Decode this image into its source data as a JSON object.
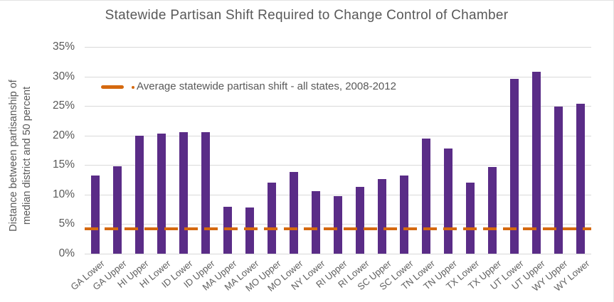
{
  "colors": {
    "bar": "#5a2c87",
    "average_line": "#d5690f",
    "text": "#595959",
    "axis_label_text": "#5f5f5f",
    "gridline": "#d9d9d9",
    "background": "#ffffff"
  },
  "chart_data": {
    "type": "bar",
    "title": "Statewide Partisan Shift Required to Change Control of Chamber",
    "ylabel": "Distance between partisanship of median district and 50 percent",
    "ylabel_lines": [
      "Distance between partisanship of",
      "median district and 50 percent"
    ],
    "xlabel": "",
    "categories": [
      "GA Lower",
      "GA Upper",
      "HI Upper",
      "HI Lower",
      "ID Lower",
      "ID Upper",
      "MA Upper",
      "MA Lower",
      "MO Upper",
      "MO Lower",
      "NY Lower",
      "RI Upper",
      "RI Lower",
      "SC Upper",
      "SC Lower",
      "TN Lower",
      "TN Upper",
      "TX Lower",
      "TX Upper",
      "UT Lower",
      "UT Upper",
      "WY Upper",
      "WY Lower"
    ],
    "values": [
      13.2,
      14.8,
      20.0,
      20.3,
      20.6,
      20.6,
      7.9,
      7.8,
      12.0,
      13.8,
      10.6,
      9.8,
      11.3,
      12.6,
      13.2,
      19.5,
      17.8,
      12.0,
      14.7,
      29.6,
      30.8,
      24.9,
      25.4
    ],
    "ylim": [
      0,
      35
    ],
    "ytick_step": 5,
    "ytick_labels": [
      "0%",
      "5%",
      "10%",
      "15%",
      "20%",
      "25%",
      "30%",
      "35%"
    ],
    "grid": true,
    "legend": {
      "label": "Average statewide partisan shift - all states, 2008-2012",
      "position": "upper-left-inside"
    },
    "reference_line": {
      "name": "Average statewide partisan shift - all states, 2008-2012",
      "value": 4.2,
      "style": "dashed"
    }
  }
}
